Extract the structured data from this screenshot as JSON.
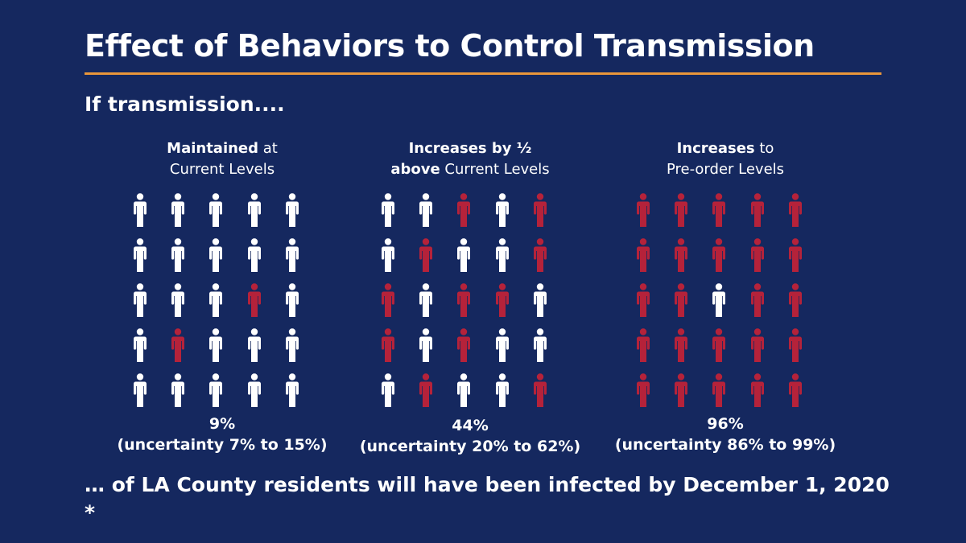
{
  "title": "Effect of Behaviors to Control Transmission",
  "subtitle": "If transmission....",
  "colors": {
    "background": "#15285f",
    "accent_rule": "#e9963a",
    "person_uninfected": "#ffffff",
    "person_infected": "#b5223a"
  },
  "panels": [
    {
      "header_line1_bold": "Maintained",
      "header_line1_rest": " at",
      "header_line2_bold": "",
      "header_line2_rest": "Current Levels",
      "percent": "9%",
      "uncertainty": "(uncertainty 7% to 15%)",
      "grid": [
        [
          0,
          0,
          0,
          0,
          0
        ],
        [
          0,
          0,
          0,
          0,
          0
        ],
        [
          0,
          0,
          0,
          1,
          0
        ],
        [
          0,
          1,
          0,
          0,
          0
        ],
        [
          0,
          0,
          0,
          0,
          0
        ]
      ]
    },
    {
      "header_line1_bold": "Increases by ½",
      "header_line1_rest": "",
      "header_line2_bold": "above",
      "header_line2_rest": " Current Levels",
      "percent": "44%",
      "uncertainty": "(uncertainty 20% to 62%)",
      "grid": [
        [
          0,
          0,
          1,
          0,
          1
        ],
        [
          0,
          1,
          0,
          0,
          1
        ],
        [
          1,
          0,
          1,
          1,
          0
        ],
        [
          1,
          0,
          1,
          0,
          0
        ],
        [
          0,
          1,
          0,
          0,
          1
        ]
      ]
    },
    {
      "header_line1_bold": "Increases",
      "header_line1_rest": " to",
      "header_line2_bold": "",
      "header_line2_rest": "Pre-order Levels",
      "percent": "96%",
      "uncertainty": "(uncertainty 86% to 99%)",
      "grid": [
        [
          1,
          1,
          1,
          1,
          1
        ],
        [
          1,
          1,
          1,
          1,
          1
        ],
        [
          1,
          1,
          0,
          1,
          1
        ],
        [
          1,
          1,
          1,
          1,
          1
        ],
        [
          1,
          1,
          1,
          1,
          1
        ]
      ]
    }
  ],
  "conclusion": "… of LA County residents will have been infected by December 1, 2020 *"
}
